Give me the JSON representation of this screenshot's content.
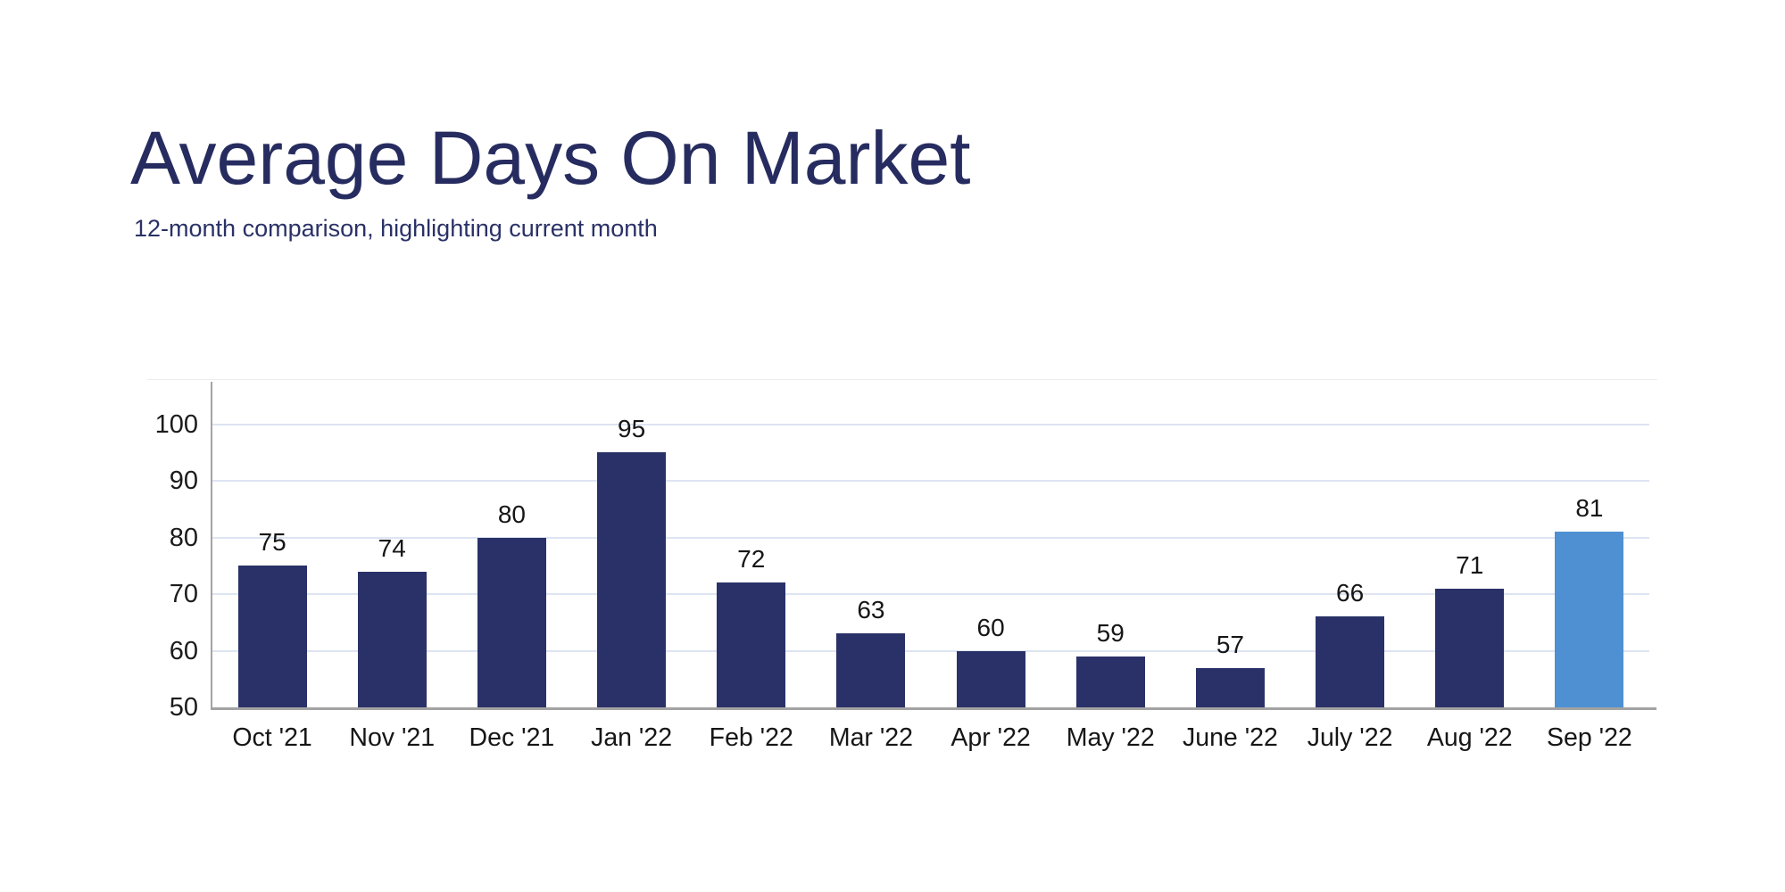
{
  "header": {
    "title": "Average Days On Market",
    "subtitle": "12-month comparison, highlighting current month",
    "title_color": "#262c5f",
    "subtitle_color": "#2a3166"
  },
  "chart_data": {
    "type": "bar",
    "title": "Average Days On Market",
    "subtitle": "12-month comparison, highlighting current month",
    "categories": [
      "Oct '21",
      "Nov '21",
      "Dec '21",
      "Jan '22",
      "Feb '22",
      "Mar '22",
      "Apr '22",
      "May '22",
      "June '22",
      "July '22",
      "Aug '22",
      "Sep '22"
    ],
    "values": [
      75,
      74,
      80,
      95,
      72,
      63,
      60,
      59,
      57,
      66,
      71,
      81
    ],
    "highlight_index": 11,
    "highlighted_category": "Sep '22",
    "xlabel": "",
    "ylabel": "",
    "ylim": [
      50,
      100
    ],
    "yticks": [
      50,
      60,
      70,
      80,
      90,
      100
    ],
    "grid": true,
    "legend": "none",
    "bar_color": "#2a3168",
    "highlight_color": "#4e90d2",
    "grid_color": "#dde4f2",
    "axis_color": "#a3a3a3",
    "tick_text_color": "#1b1b1b",
    "value_label_color": "#161616"
  }
}
